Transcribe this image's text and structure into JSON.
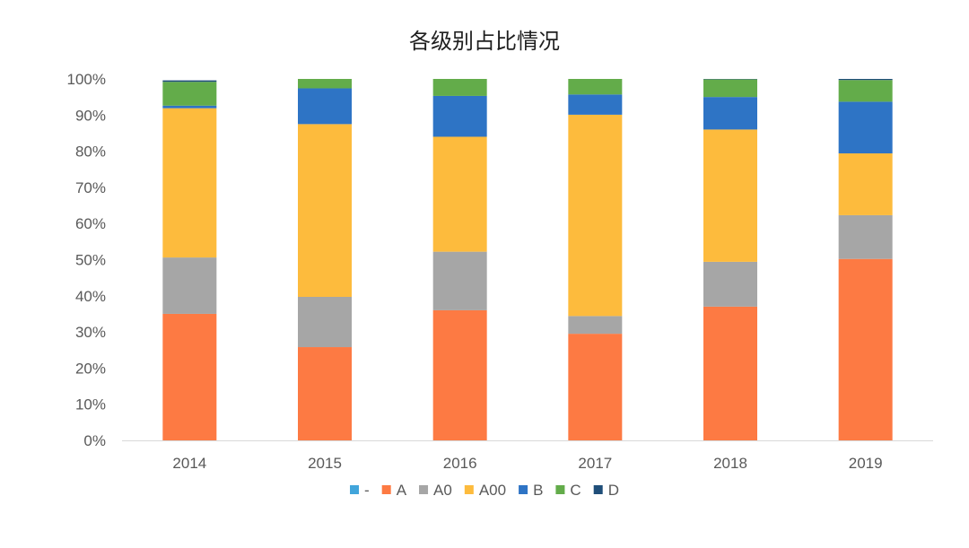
{
  "chart_data": {
    "type": "bar",
    "stacked": true,
    "title": "各级别占比情况",
    "xlabel": "",
    "ylabel": "",
    "ylim": [
      0,
      1
    ],
    "y_ticks": [
      "0%",
      "10%",
      "20%",
      "30%",
      "40%",
      "50%",
      "60%",
      "70%",
      "80%",
      "90%",
      "100%"
    ],
    "grid": false,
    "legend_position": "bottom",
    "categories": [
      "2014",
      "2015",
      "2016",
      "2017",
      "2018",
      "2019"
    ],
    "series": [
      {
        "name": "-",
        "color": "#41a5db",
        "values": [
          0.0,
          0.0,
          0.0,
          0.0,
          0.0,
          0.0
        ]
      },
      {
        "name": "A",
        "color": "#fd7a43",
        "values": [
          0.35,
          0.258,
          0.36,
          0.295,
          0.37,
          0.502
        ]
      },
      {
        "name": "A0",
        "color": "#a6a6a6",
        "values": [
          0.156,
          0.139,
          0.162,
          0.049,
          0.124,
          0.121
        ]
      },
      {
        "name": "A00",
        "color": "#fdbb3d",
        "values": [
          0.413,
          0.478,
          0.318,
          0.557,
          0.366,
          0.171
        ]
      },
      {
        "name": "B",
        "color": "#2e74c5",
        "values": [
          0.007,
          0.099,
          0.113,
          0.056,
          0.09,
          0.143
        ]
      },
      {
        "name": "C",
        "color": "#63ac4a",
        "values": [
          0.066,
          0.026,
          0.047,
          0.043,
          0.049,
          0.06
        ]
      },
      {
        "name": "D",
        "color": "#1f4e79",
        "values": [
          0.004,
          0.0,
          0.0,
          0.0,
          0.001,
          0.003
        ]
      }
    ]
  }
}
